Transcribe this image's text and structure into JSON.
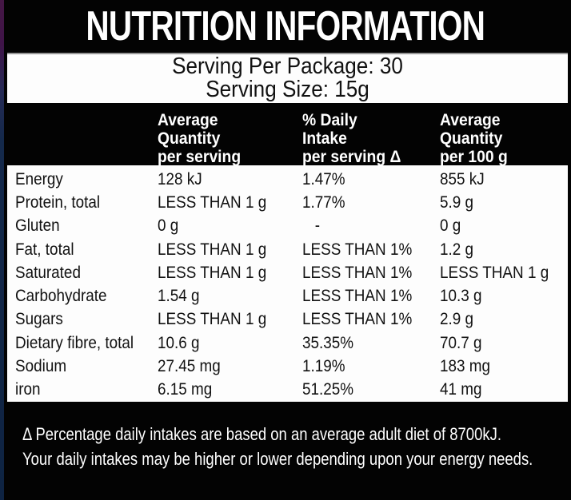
{
  "label": {
    "title": "NUTRITION INFORMATION",
    "serving": {
      "per_package": "Serving Per Package: 30",
      "size": "Serving Size: 15g"
    },
    "table": {
      "headers": [
        {
          "line1": "Average",
          "line2": "Quantity",
          "line3": "per serving"
        },
        {
          "line1": "% Daily",
          "line2": "Intake",
          "line3": "per serving Δ"
        },
        {
          "line1": "Average",
          "line2": "Quantity",
          "line3": "per 100 g"
        }
      ],
      "rows": [
        {
          "name": "Energy",
          "per_serving": "128 kJ",
          "daily_intake": "1.47%",
          "per_100g": "855 kJ"
        },
        {
          "name": "Protein, total",
          "per_serving": "LESS THAN 1 g",
          "daily_intake": "1.77%",
          "per_100g": "5.9 g"
        },
        {
          "name": "Gluten",
          "per_serving": "0 g",
          "daily_intake": "   -",
          "per_100g": "0 g"
        },
        {
          "name": "Fat, total",
          "per_serving": "LESS THAN 1 g",
          "daily_intake": "LESS THAN 1%",
          "per_100g": "1.2 g"
        },
        {
          "name": "Saturated",
          "per_serving": "LESS THAN 1 g",
          "daily_intake": "LESS THAN 1%",
          "per_100g": "LESS THAN 1 g"
        },
        {
          "name": "Carbohydrate",
          "per_serving": "1.54 g",
          "daily_intake": "LESS THAN 1%",
          "per_100g": "10.3 g"
        },
        {
          "name": "Sugars",
          "per_serving": "LESS THAN 1 g",
          "daily_intake": "LESS THAN 1%",
          "per_100g": "2.9 g"
        },
        {
          "name": "Dietary fibre, total",
          "per_serving": "10.6 g",
          "daily_intake": "35.35%",
          "per_100g": "70.7 g"
        },
        {
          "name": "Sodium",
          "per_serving": "27.45 mg",
          "daily_intake": "1.19%",
          "per_100g": "183 mg"
        },
        {
          "name": "iron",
          "per_serving": "6.15 mg",
          "daily_intake": "51.25%",
          "per_100g": "41 mg"
        }
      ]
    },
    "footnote": {
      "line1": "Δ Percentage daily intakes are based on an average adult diet of 8700kJ.",
      "line2": "Your daily intakes may be higher or lower depending upon your energy needs."
    },
    "colors": {
      "label_bg": "#030303",
      "panel_bg": "#fdfdfd",
      "text_light": "#ffffff",
      "text_dark": "#121212",
      "edge_purple": "#3f1448",
      "edge_navy": "#14294b"
    }
  }
}
